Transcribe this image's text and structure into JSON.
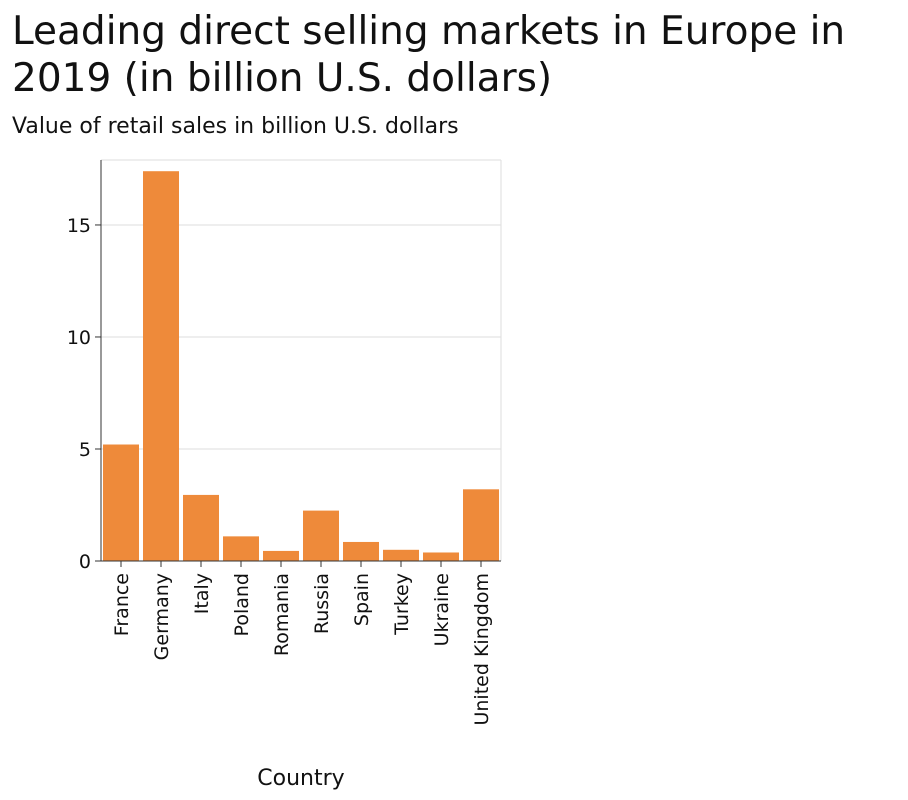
{
  "chart_data": {
    "type": "bar",
    "title": "Leading direct selling markets in Europe in 2019 (in billion U.S. dollars)",
    "ylabel": "Value of retail sales in billion U.S. dollars",
    "xlabel": "Country",
    "categories": [
      "France",
      "Germany",
      "Italy",
      "Poland",
      "Romania",
      "Russia",
      "Spain",
      "Turkey",
      "Ukraine",
      "United Kingdom"
    ],
    "values": [
      5.2,
      17.4,
      2.95,
      1.1,
      0.45,
      2.25,
      0.85,
      0.5,
      0.38,
      3.2
    ],
    "yticks": [
      0,
      5,
      10,
      15
    ],
    "ylim": [
      0,
      17.9
    ],
    "grid": true,
    "bar_color": "#ee8a3a",
    "grid_color": "#dddddd"
  }
}
